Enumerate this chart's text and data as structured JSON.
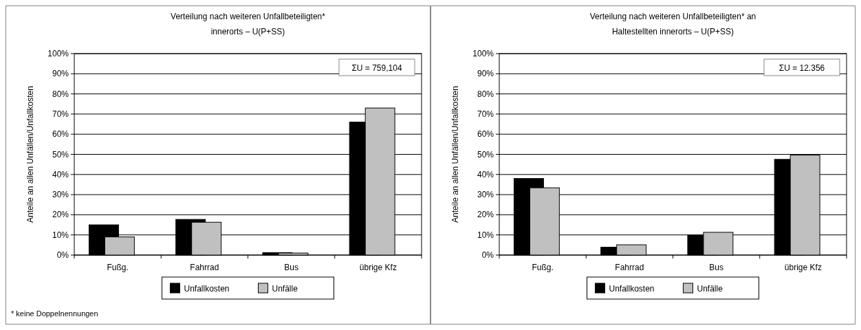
{
  "chart_data": [
    {
      "type": "bar",
      "title": "Verteilung nach weiteren Unfallbeteiligten*\ninnerorts –  U(P+SS)",
      "ylabel": "Anteile an allen Unfällen/Unfallkosten",
      "categories": [
        "Fußg.",
        "Fahrrad",
        "Bus",
        "übrige Kfz"
      ],
      "series": [
        {
          "name": "Unfallkosten",
          "color": "#000000",
          "values": [
            15,
            17.7,
            1.2,
            66
          ]
        },
        {
          "name": "Unfälle",
          "color": "#c0c0c0",
          "values": [
            9,
            16.3,
            1,
            73
          ]
        }
      ],
      "ylim": [
        0,
        100
      ],
      "yticks": [
        {
          "value": 0,
          "label": "0%"
        },
        {
          "value": 10,
          "label": "10%"
        },
        {
          "value": 20,
          "label": "20%"
        },
        {
          "value": 30,
          "label": "30%"
        },
        {
          "value": 40,
          "label": "40%"
        },
        {
          "value": 50,
          "label": "50%"
        },
        {
          "value": 60,
          "label": "60%"
        },
        {
          "value": 70,
          "label": "70%"
        },
        {
          "value": 80,
          "label": "80%"
        },
        {
          "value": 90,
          "label": "90%"
        },
        {
          "value": 100,
          "label": "100%"
        }
      ],
      "grid": "y",
      "legend": "bottom",
      "annotations": [
        "ΣU = 759,104",
        "* keine Doppelnennungen"
      ]
    },
    {
      "type": "bar",
      "title": "Verteilung nach weiteren Unfallbeteiligten* an\nHaltestellten innerorts – U(P+SS)",
      "ylabel": "Anteile an allen Unfällen/Unfallkosten",
      "categories": [
        "Fußg.",
        "Fahrrad",
        "Bus",
        "übrige Kfz"
      ],
      "series": [
        {
          "name": "Unfallkosten",
          "color": "#000000",
          "values": [
            38,
            3.9,
            9.9,
            47.5
          ]
        },
        {
          "name": "Unfälle",
          "color": "#c0c0c0",
          "values": [
            33.4,
            5.1,
            11.3,
            49.6
          ]
        }
      ],
      "ylim": [
        0,
        100
      ],
      "yticks": [
        {
          "value": 0,
          "label": "0%"
        },
        {
          "value": 10,
          "label": "10%"
        },
        {
          "value": 20,
          "label": "20%"
        },
        {
          "value": 30,
          "label": "30%"
        },
        {
          "value": 40,
          "label": "40%"
        },
        {
          "value": 50,
          "label": "50%"
        },
        {
          "value": 60,
          "label": "60%"
        },
        {
          "value": 70,
          "label": "70%"
        },
        {
          "value": 80,
          "label": "80%"
        },
        {
          "value": 90,
          "label": "90%"
        },
        {
          "value": 100,
          "label": "100%"
        }
      ],
      "grid": "y",
      "legend": "bottom",
      "annotations": [
        "ΣU = 12.356"
      ]
    }
  ]
}
